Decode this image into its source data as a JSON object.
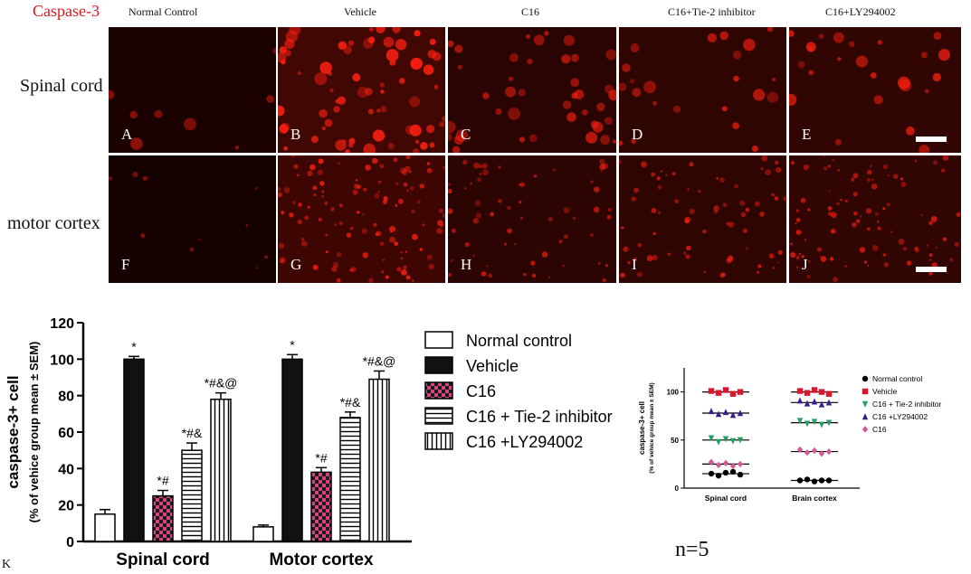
{
  "figure": {
    "title": "Caspase-3",
    "columns": [
      "Normal Control",
      "Vehicle",
      "C16",
      "C16+Tie-2 inhibitor",
      "C16+LY294002"
    ],
    "rows": [
      "Spinal cord",
      "motor cortex"
    ],
    "panel_letters": [
      "A",
      "B",
      "C",
      "D",
      "E",
      "F",
      "G",
      "H",
      "I",
      "J"
    ],
    "k_label": "K",
    "n_label": "n=5"
  },
  "colors": {
    "title": "#e0141e",
    "fluorescence": "#ff2010",
    "c16_fill": "#d4447e",
    "normal_marker": "#000000",
    "vehicle_marker": "#e0142a",
    "tie2_marker": "#20a060",
    "ly_marker": "#3c1a8c",
    "c16_marker": "#d45a96"
  },
  "chart_data": [
    {
      "type": "bar",
      "ylabel": "caspase-3+ cell",
      "ylabel2": "(% of vehice group mean ± SEM)",
      "ylim": [
        0,
        120
      ],
      "yticks": [
        0,
        20,
        40,
        60,
        80,
        100,
        120
      ],
      "categories": [
        "Spinal cord",
        "Motor cortex"
      ],
      "legend_position": "right",
      "series": [
        {
          "name": "Normal control",
          "pattern": "white",
          "values": [
            15,
            8
          ],
          "errors": [
            2.5,
            1
          ],
          "annotations": [
            "",
            ""
          ]
        },
        {
          "name": "Vehicle",
          "pattern": "black",
          "values": [
            100,
            100
          ],
          "errors": [
            1.5,
            2.5
          ],
          "annotations": [
            "*",
            "*"
          ]
        },
        {
          "name": "C16",
          "pattern": "checker",
          "values": [
            25,
            38
          ],
          "errors": [
            3,
            2.5
          ],
          "annotations": [
            "*#",
            "*#"
          ]
        },
        {
          "name": "C16 + Tie-2 inhibitor",
          "pattern": "hstripes",
          "values": [
            50,
            68
          ],
          "errors": [
            4,
            3
          ],
          "annotations": [
            "*#&",
            "*#&"
          ]
        },
        {
          "name": "C16 +LY294002",
          "pattern": "vstripes",
          "values": [
            78,
            89
          ],
          "errors": [
            3.5,
            4.5
          ],
          "annotations": [
            "*#&@",
            "*#&@"
          ]
        }
      ]
    },
    {
      "type": "scatter",
      "ylabel": "caspase-3+ cell",
      "ylabel2": "(% of vehice group mean ± SEM)",
      "ylim": [
        0,
        125
      ],
      "yticks": [
        0,
        50,
        100
      ],
      "categories": [
        "Spinal cord",
        "Brain cortex"
      ],
      "legend_position": "right",
      "series": [
        {
          "name": "Normal control",
          "marker": "circle",
          "mean": [
            15,
            8
          ],
          "points": [
            [
              15,
              13,
              16,
              17,
              14
            ],
            [
              8,
              9,
              7,
              8,
              8
            ]
          ]
        },
        {
          "name": "Vehicle",
          "marker": "square",
          "mean": [
            100,
            100
          ],
          "points": [
            [
              101,
              99,
              102,
              98,
              100
            ],
            [
              101,
              99,
              102,
              100,
              98
            ]
          ]
        },
        {
          "name": "C16 + Tie-2 inhibitor",
          "marker": "triangle-down",
          "mean": [
            50,
            68
          ],
          "points": [
            [
              52,
              48,
              51,
              49,
              50
            ],
            [
              70,
              67,
              69,
              66,
              68
            ]
          ]
        },
        {
          "name": "C16 +LY294002",
          "marker": "triangle-up",
          "mean": [
            78,
            89
          ],
          "points": [
            [
              80,
              77,
              79,
              76,
              78
            ],
            [
              91,
              88,
              90,
              87,
              89
            ]
          ]
        },
        {
          "name": "C16",
          "marker": "diamond",
          "mean": [
            25,
            38
          ],
          "points": [
            [
              27,
              24,
              26,
              23,
              25
            ],
            [
              40,
              37,
              39,
              36,
              38
            ]
          ]
        }
      ]
    }
  ]
}
